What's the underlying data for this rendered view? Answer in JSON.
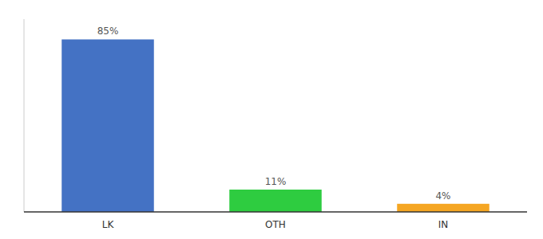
{
  "chart_data": {
    "type": "bar",
    "categories": [
      "LK",
      "OTH",
      "IN"
    ],
    "values": [
      85,
      11,
      4
    ],
    "value_labels": [
      "85%",
      "11%",
      "4%"
    ],
    "colors": [
      "#4472c4",
      "#2ecc40",
      "#f5a623"
    ],
    "ylim": [
      0,
      95
    ],
    "data_labels": true,
    "tick_labels": "x",
    "grid": false
  }
}
